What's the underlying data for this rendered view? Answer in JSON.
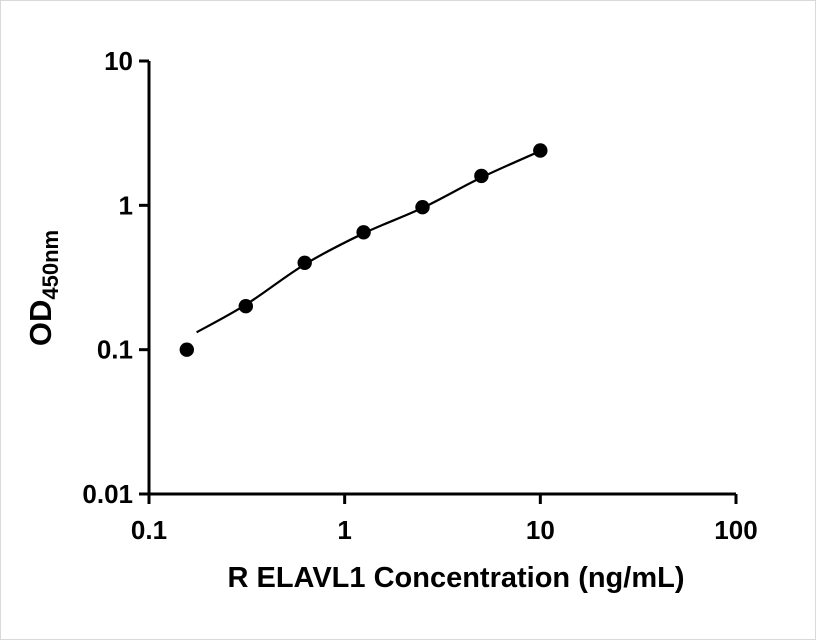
{
  "figure": {
    "background_color": "#ffffff",
    "axis_color": "#000000",
    "marker_color": "#000000",
    "line_color": "#000000"
  },
  "chart_data": {
    "type": "scatter",
    "title": "",
    "xlabel": "R ELAVL1 Concentration (ng/mL)",
    "ylabel": "OD450nm",
    "ylabel_parts": {
      "main": "OD",
      "sub": "450nm"
    },
    "x_scale": "log",
    "y_scale": "log",
    "xlim": [
      0.1,
      100
    ],
    "ylim": [
      0.01,
      10
    ],
    "x_tick_values": [
      0.1,
      1,
      10,
      100
    ],
    "x_tick_labels": [
      "0.1",
      "1",
      "10",
      "100"
    ],
    "y_tick_values": [
      0.01,
      0.1,
      1,
      10
    ],
    "y_tick_labels": [
      "0.01",
      "0.1",
      "1",
      "10"
    ],
    "grid": false,
    "legend": null,
    "series": [
      {
        "marker": "circle",
        "marker_color": "#000000",
        "line_color": "#000000",
        "points": [
          {
            "x": 0.156,
            "y": 0.1
          },
          {
            "x": 0.3125,
            "y": 0.2
          },
          {
            "x": 0.625,
            "y": 0.4
          },
          {
            "x": 1.25,
            "y": 0.65
          },
          {
            "x": 2.5,
            "y": 0.97
          },
          {
            "x": 5,
            "y": 1.6
          },
          {
            "x": 10,
            "y": 2.4
          }
        ],
        "fit_curve": [
          {
            "x": 0.175,
            "y": 0.132
          },
          {
            "x": 0.3125,
            "y": 0.205
          },
          {
            "x": 0.625,
            "y": 0.39
          },
          {
            "x": 1.25,
            "y": 0.64
          },
          {
            "x": 2.5,
            "y": 0.96
          },
          {
            "x": 5,
            "y": 1.56
          },
          {
            "x": 10,
            "y": 2.38
          }
        ]
      }
    ]
  }
}
